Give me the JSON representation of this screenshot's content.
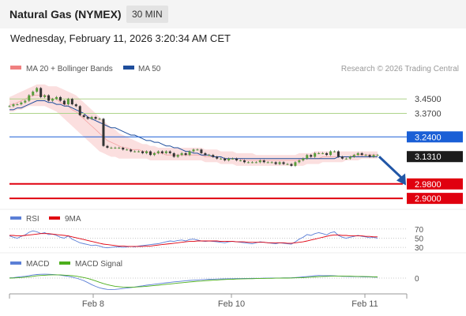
{
  "header": {
    "title": "Natural Gas (NYMEX)",
    "timeframe": "30 MIN",
    "date": "Wednesday, February 11, 2026 3:20:34 AM CET"
  },
  "legend": {
    "bollinger_label": "MA 20 + Bollinger Bands",
    "ma50_label": "MA 50",
    "credit": "Research © 2026 Trading Central",
    "colors": {
      "bollinger": "#f08080",
      "ma50": "#1f4e9c"
    }
  },
  "chart_data": [
    {
      "type": "candlestick",
      "title": "",
      "x_ticks": [
        "Feb 8",
        "Feb 10",
        "Feb 11"
      ],
      "ylim": [
        2.87,
        3.56
      ],
      "last_price": 3.131,
      "levels": [
        {
          "value": 3.45,
          "label": "3.4500",
          "style": "resistance",
          "color": "#aed48a"
        },
        {
          "value": 3.37,
          "label": "3.3700",
          "style": "resistance",
          "color": "#aed48a"
        },
        {
          "value": 3.24,
          "label": "3.2400",
          "style": "pivot",
          "color": "#1a5fd6"
        },
        {
          "value": 3.131,
          "label": "3.1310",
          "style": "last",
          "color": "#1c1c1c"
        },
        {
          "value": 2.98,
          "label": "2.9800",
          "style": "support",
          "color": "#e0000f"
        },
        {
          "value": 2.9,
          "label": "2.9000",
          "style": "support",
          "color": "#e0000f"
        }
      ],
      "projection": {
        "from": 3.131,
        "to": 2.99,
        "color": "#2156a6"
      },
      "price_series": [
        3.41,
        3.42,
        3.42,
        3.43,
        3.44,
        3.47,
        3.49,
        3.51,
        3.46,
        3.47,
        3.44,
        3.45,
        3.46,
        3.44,
        3.42,
        3.45,
        3.42,
        3.41,
        3.36,
        3.35,
        3.34,
        3.35,
        3.34,
        3.34,
        3.19,
        3.18,
        3.18,
        3.18,
        3.18,
        3.17,
        3.17,
        3.16,
        3.16,
        3.16,
        3.15,
        3.16,
        3.14,
        3.15,
        3.16,
        3.15,
        3.16,
        3.15,
        3.13,
        3.14,
        3.15,
        3.14,
        3.16,
        3.17,
        3.17,
        3.15,
        3.14,
        3.14,
        3.13,
        3.12,
        3.12,
        3.11,
        3.12,
        3.12,
        3.11,
        3.11,
        3.1,
        3.1,
        3.1,
        3.1,
        3.11,
        3.1,
        3.1,
        3.1,
        3.09,
        3.1,
        3.09,
        3.09,
        3.08,
        3.1,
        3.11,
        3.12,
        3.14,
        3.13,
        3.15,
        3.15,
        3.15,
        3.14,
        3.16,
        3.16,
        3.13,
        3.12,
        3.12,
        3.13,
        3.14,
        3.15,
        3.14,
        3.14,
        3.13,
        3.14,
        3.14
      ],
      "ma50": [
        3.39,
        3.39,
        3.4,
        3.4,
        3.41,
        3.42,
        3.43,
        3.44,
        3.44,
        3.44,
        3.43,
        3.43,
        3.42,
        3.42,
        3.41,
        3.41,
        3.4,
        3.39,
        3.38,
        3.37,
        3.35,
        3.34,
        3.33,
        3.32,
        3.31,
        3.3,
        3.29,
        3.29,
        3.28,
        3.27,
        3.26,
        3.25,
        3.25,
        3.24,
        3.23,
        3.22,
        3.22,
        3.21,
        3.21,
        3.2,
        3.19,
        3.19,
        3.18,
        3.18,
        3.17,
        3.16,
        3.16,
        3.15,
        3.15,
        3.14,
        3.14,
        3.14,
        3.13,
        3.13,
        3.13,
        3.12,
        3.12,
        3.12,
        3.12,
        3.12,
        3.12,
        3.12,
        3.12,
        3.12,
        3.12,
        3.12,
        3.12,
        3.12,
        3.12,
        3.12,
        3.12,
        3.12,
        3.12,
        3.12,
        3.12,
        3.12,
        3.12,
        3.12,
        3.12,
        3.12,
        3.12,
        3.12,
        3.12,
        3.12,
        3.13,
        3.13,
        3.13,
        3.13,
        3.13,
        3.13,
        3.13,
        3.13,
        3.13,
        3.13,
        3.13
      ],
      "bb_upper": [
        3.46,
        3.47,
        3.48,
        3.49,
        3.5,
        3.51,
        3.52,
        3.53,
        3.53,
        3.53,
        3.52,
        3.52,
        3.52,
        3.51,
        3.5,
        3.49,
        3.48,
        3.47,
        3.45,
        3.43,
        3.41,
        3.39,
        3.37,
        3.35,
        3.33,
        3.31,
        3.29,
        3.28,
        3.26,
        3.25,
        3.24,
        3.23,
        3.22,
        3.21,
        3.2,
        3.2,
        3.19,
        3.19,
        3.18,
        3.18,
        3.18,
        3.18,
        3.18,
        3.18,
        3.18,
        3.18,
        3.18,
        3.18,
        3.18,
        3.18,
        3.17,
        3.17,
        3.17,
        3.17,
        3.16,
        3.16,
        3.16,
        3.16,
        3.15,
        3.15,
        3.15,
        3.15,
        3.15,
        3.14,
        3.14,
        3.14,
        3.14,
        3.14,
        3.14,
        3.14,
        3.14,
        3.14,
        3.14,
        3.14,
        3.15,
        3.15,
        3.15,
        3.15,
        3.16,
        3.16,
        3.16,
        3.16,
        3.16,
        3.16,
        3.16,
        3.16,
        3.16,
        3.16,
        3.16,
        3.16,
        3.16,
        3.16,
        3.16,
        3.16,
        3.16
      ],
      "bb_lower": [
        3.38,
        3.38,
        3.39,
        3.39,
        3.4,
        3.41,
        3.41,
        3.41,
        3.41,
        3.41,
        3.4,
        3.39,
        3.38,
        3.36,
        3.34,
        3.32,
        3.3,
        3.28,
        3.26,
        3.24,
        3.22,
        3.2,
        3.18,
        3.16,
        3.15,
        3.14,
        3.13,
        3.13,
        3.12,
        3.12,
        3.12,
        3.12,
        3.12,
        3.12,
        3.12,
        3.12,
        3.11,
        3.11,
        3.11,
        3.11,
        3.11,
        3.11,
        3.11,
        3.11,
        3.11,
        3.11,
        3.11,
        3.11,
        3.11,
        3.11,
        3.1,
        3.1,
        3.1,
        3.1,
        3.09,
        3.09,
        3.09,
        3.09,
        3.08,
        3.08,
        3.08,
        3.08,
        3.08,
        3.08,
        3.08,
        3.08,
        3.08,
        3.08,
        3.08,
        3.08,
        3.08,
        3.08,
        3.08,
        3.08,
        3.08,
        3.08,
        3.09,
        3.09,
        3.09,
        3.09,
        3.1,
        3.1,
        3.1,
        3.1,
        3.1,
        3.1,
        3.11,
        3.11,
        3.11,
        3.11,
        3.12,
        3.12,
        3.12,
        3.12,
        3.12
      ],
      "bb_mid": [
        3.42,
        3.42,
        3.43,
        3.44,
        3.45,
        3.46,
        3.47,
        3.47,
        3.47,
        3.47,
        3.46,
        3.45,
        3.45,
        3.43,
        3.42,
        3.41,
        3.39,
        3.38,
        3.36,
        3.34,
        3.32,
        3.3,
        3.28,
        3.26,
        3.24,
        3.22,
        3.21,
        3.2,
        3.19,
        3.18,
        3.18,
        3.17,
        3.17,
        3.17,
        3.16,
        3.16,
        3.15,
        3.15,
        3.15,
        3.15,
        3.14,
        3.14,
        3.14,
        3.14,
        3.14,
        3.14,
        3.14,
        3.14,
        3.14,
        3.14,
        3.13,
        3.13,
        3.13,
        3.13,
        3.13,
        3.12,
        3.12,
        3.12,
        3.12,
        3.12,
        3.11,
        3.11,
        3.11,
        3.11,
        3.11,
        3.11,
        3.11,
        3.11,
        3.11,
        3.11,
        3.11,
        3.11,
        3.11,
        3.11,
        3.11,
        3.12,
        3.12,
        3.12,
        3.12,
        3.12,
        3.13,
        3.13,
        3.13,
        3.13,
        3.13,
        3.13,
        3.13,
        3.13,
        3.14,
        3.14,
        3.14,
        3.14,
        3.14,
        3.14,
        3.14
      ]
    },
    {
      "type": "line",
      "title": "",
      "legend": [
        {
          "name": "RSI",
          "color": "#5b7fd6"
        },
        {
          "name": "9MA",
          "color": "#e0000f"
        }
      ],
      "ylim": [
        25,
        75
      ],
      "y_ticks": [
        "70",
        "50",
        "30"
      ],
      "y_tick_values": [
        70,
        50,
        30
      ],
      "series": [
        {
          "name": "RSI",
          "values": [
            55,
            52,
            50,
            54,
            57,
            63,
            66,
            64,
            60,
            62,
            58,
            59,
            56,
            52,
            50,
            55,
            48,
            44,
            40,
            38,
            36,
            34,
            35,
            33,
            30,
            29,
            30,
            31,
            31,
            30,
            31,
            32,
            31,
            33,
            34,
            35,
            36,
            37,
            38,
            40,
            42,
            44,
            43,
            45,
            46,
            44,
            47,
            48,
            46,
            44,
            43,
            44,
            43,
            42,
            41,
            40,
            42,
            43,
            42,
            41,
            40,
            39,
            38,
            40,
            42,
            41,
            40,
            39,
            38,
            40,
            39,
            38,
            37,
            42,
            48,
            52,
            58,
            56,
            60,
            62,
            60,
            57,
            62,
            64,
            56,
            52,
            50,
            52,
            54,
            56,
            54,
            53,
            51,
            52,
            50
          ]
        },
        {
          "name": "9MA",
          "values": [
            56,
            56,
            55,
            55,
            56,
            57,
            58,
            59,
            60,
            60,
            60,
            59,
            58,
            57,
            56,
            55,
            53,
            51,
            49,
            47,
            45,
            43,
            41,
            39,
            37,
            36,
            35,
            34,
            33,
            33,
            32,
            32,
            32,
            32,
            32,
            33,
            33,
            34,
            35,
            36,
            37,
            38,
            39,
            40,
            41,
            42,
            43,
            43,
            44,
            44,
            44,
            44,
            44,
            44,
            43,
            43,
            43,
            43,
            42,
            42,
            42,
            41,
            41,
            41,
            41,
            41,
            40,
            40,
            40,
            40,
            40,
            39,
            39,
            40,
            41,
            42,
            44,
            46,
            48,
            50,
            52,
            54,
            56,
            57,
            57,
            56,
            56,
            55,
            55,
            55,
            55,
            54,
            54,
            53,
            53
          ]
        }
      ]
    },
    {
      "type": "line",
      "title": "",
      "legend": [
        {
          "name": "MACD",
          "color": "#5b7fd6"
        },
        {
          "name": "MACD Signal",
          "color": "#4caf1c"
        }
      ],
      "ylim": [
        -1.2,
        0.6
      ],
      "y_ticks": [
        "0"
      ],
      "y_tick_values": [
        0
      ],
      "series": [
        {
          "name": "MACD",
          "values": [
            0.02,
            0.04,
            0.08,
            0.12,
            0.15,
            0.2,
            0.26,
            0.3,
            0.32,
            0.33,
            0.32,
            0.3,
            0.28,
            0.25,
            0.2,
            0.15,
            0.08,
            0,
            -0.1,
            -0.22,
            -0.38,
            -0.55,
            -0.7,
            -0.82,
            -0.9,
            -0.95,
            -0.96,
            -0.95,
            -0.92,
            -0.88,
            -0.84,
            -0.8,
            -0.75,
            -0.7,
            -0.65,
            -0.6,
            -0.56,
            -0.52,
            -0.48,
            -0.44,
            -0.4,
            -0.36,
            -0.32,
            -0.29,
            -0.26,
            -0.23,
            -0.2,
            -0.18,
            -0.16,
            -0.14,
            -0.12,
            -0.1,
            -0.09,
            -0.08,
            -0.07,
            -0.06,
            -0.05,
            -0.05,
            -0.04,
            -0.04,
            -0.03,
            -0.03,
            -0.02,
            -0.02,
            -0.02,
            -0.01,
            -0.01,
            0,
            0,
            0.01,
            0.02,
            0.02,
            0.03,
            0.05,
            0.07,
            0.1,
            0.13,
            0.16,
            0.2,
            0.22,
            0.21,
            0.2,
            0.2,
            0.19,
            0.17,
            0.15,
            0.14,
            0.13,
            0.12,
            0.12,
            0.11,
            0.1,
            0.09,
            0.08,
            0.07
          ]
        },
        {
          "name": "MACD Signal",
          "values": [
            0,
            0.01,
            0.03,
            0.05,
            0.08,
            0.11,
            0.15,
            0.19,
            0.22,
            0.24,
            0.26,
            0.27,
            0.27,
            0.27,
            0.25,
            0.23,
            0.2,
            0.16,
            0.11,
            0.05,
            -0.03,
            -0.13,
            -0.24,
            -0.35,
            -0.46,
            -0.55,
            -0.63,
            -0.69,
            -0.73,
            -0.76,
            -0.77,
            -0.77,
            -0.76,
            -0.74,
            -0.72,
            -0.69,
            -0.66,
            -0.63,
            -0.6,
            -0.56,
            -0.53,
            -0.49,
            -0.46,
            -0.42,
            -0.39,
            -0.36,
            -0.33,
            -0.3,
            -0.27,
            -0.25,
            -0.22,
            -0.2,
            -0.18,
            -0.16,
            -0.14,
            -0.12,
            -0.11,
            -0.1,
            -0.08,
            -0.07,
            -0.06,
            -0.05,
            -0.05,
            -0.04,
            -0.03,
            -0.03,
            -0.02,
            -0.02,
            -0.01,
            -0.01,
            0,
            0,
            0.01,
            0.02,
            0.03,
            0.04,
            0.06,
            0.08,
            0.1,
            0.12,
            0.14,
            0.15,
            0.16,
            0.17,
            0.17,
            0.17,
            0.16,
            0.16,
            0.15,
            0.14,
            0.14,
            0.13,
            0.12,
            0.11,
            0.1
          ]
        }
      ]
    }
  ]
}
